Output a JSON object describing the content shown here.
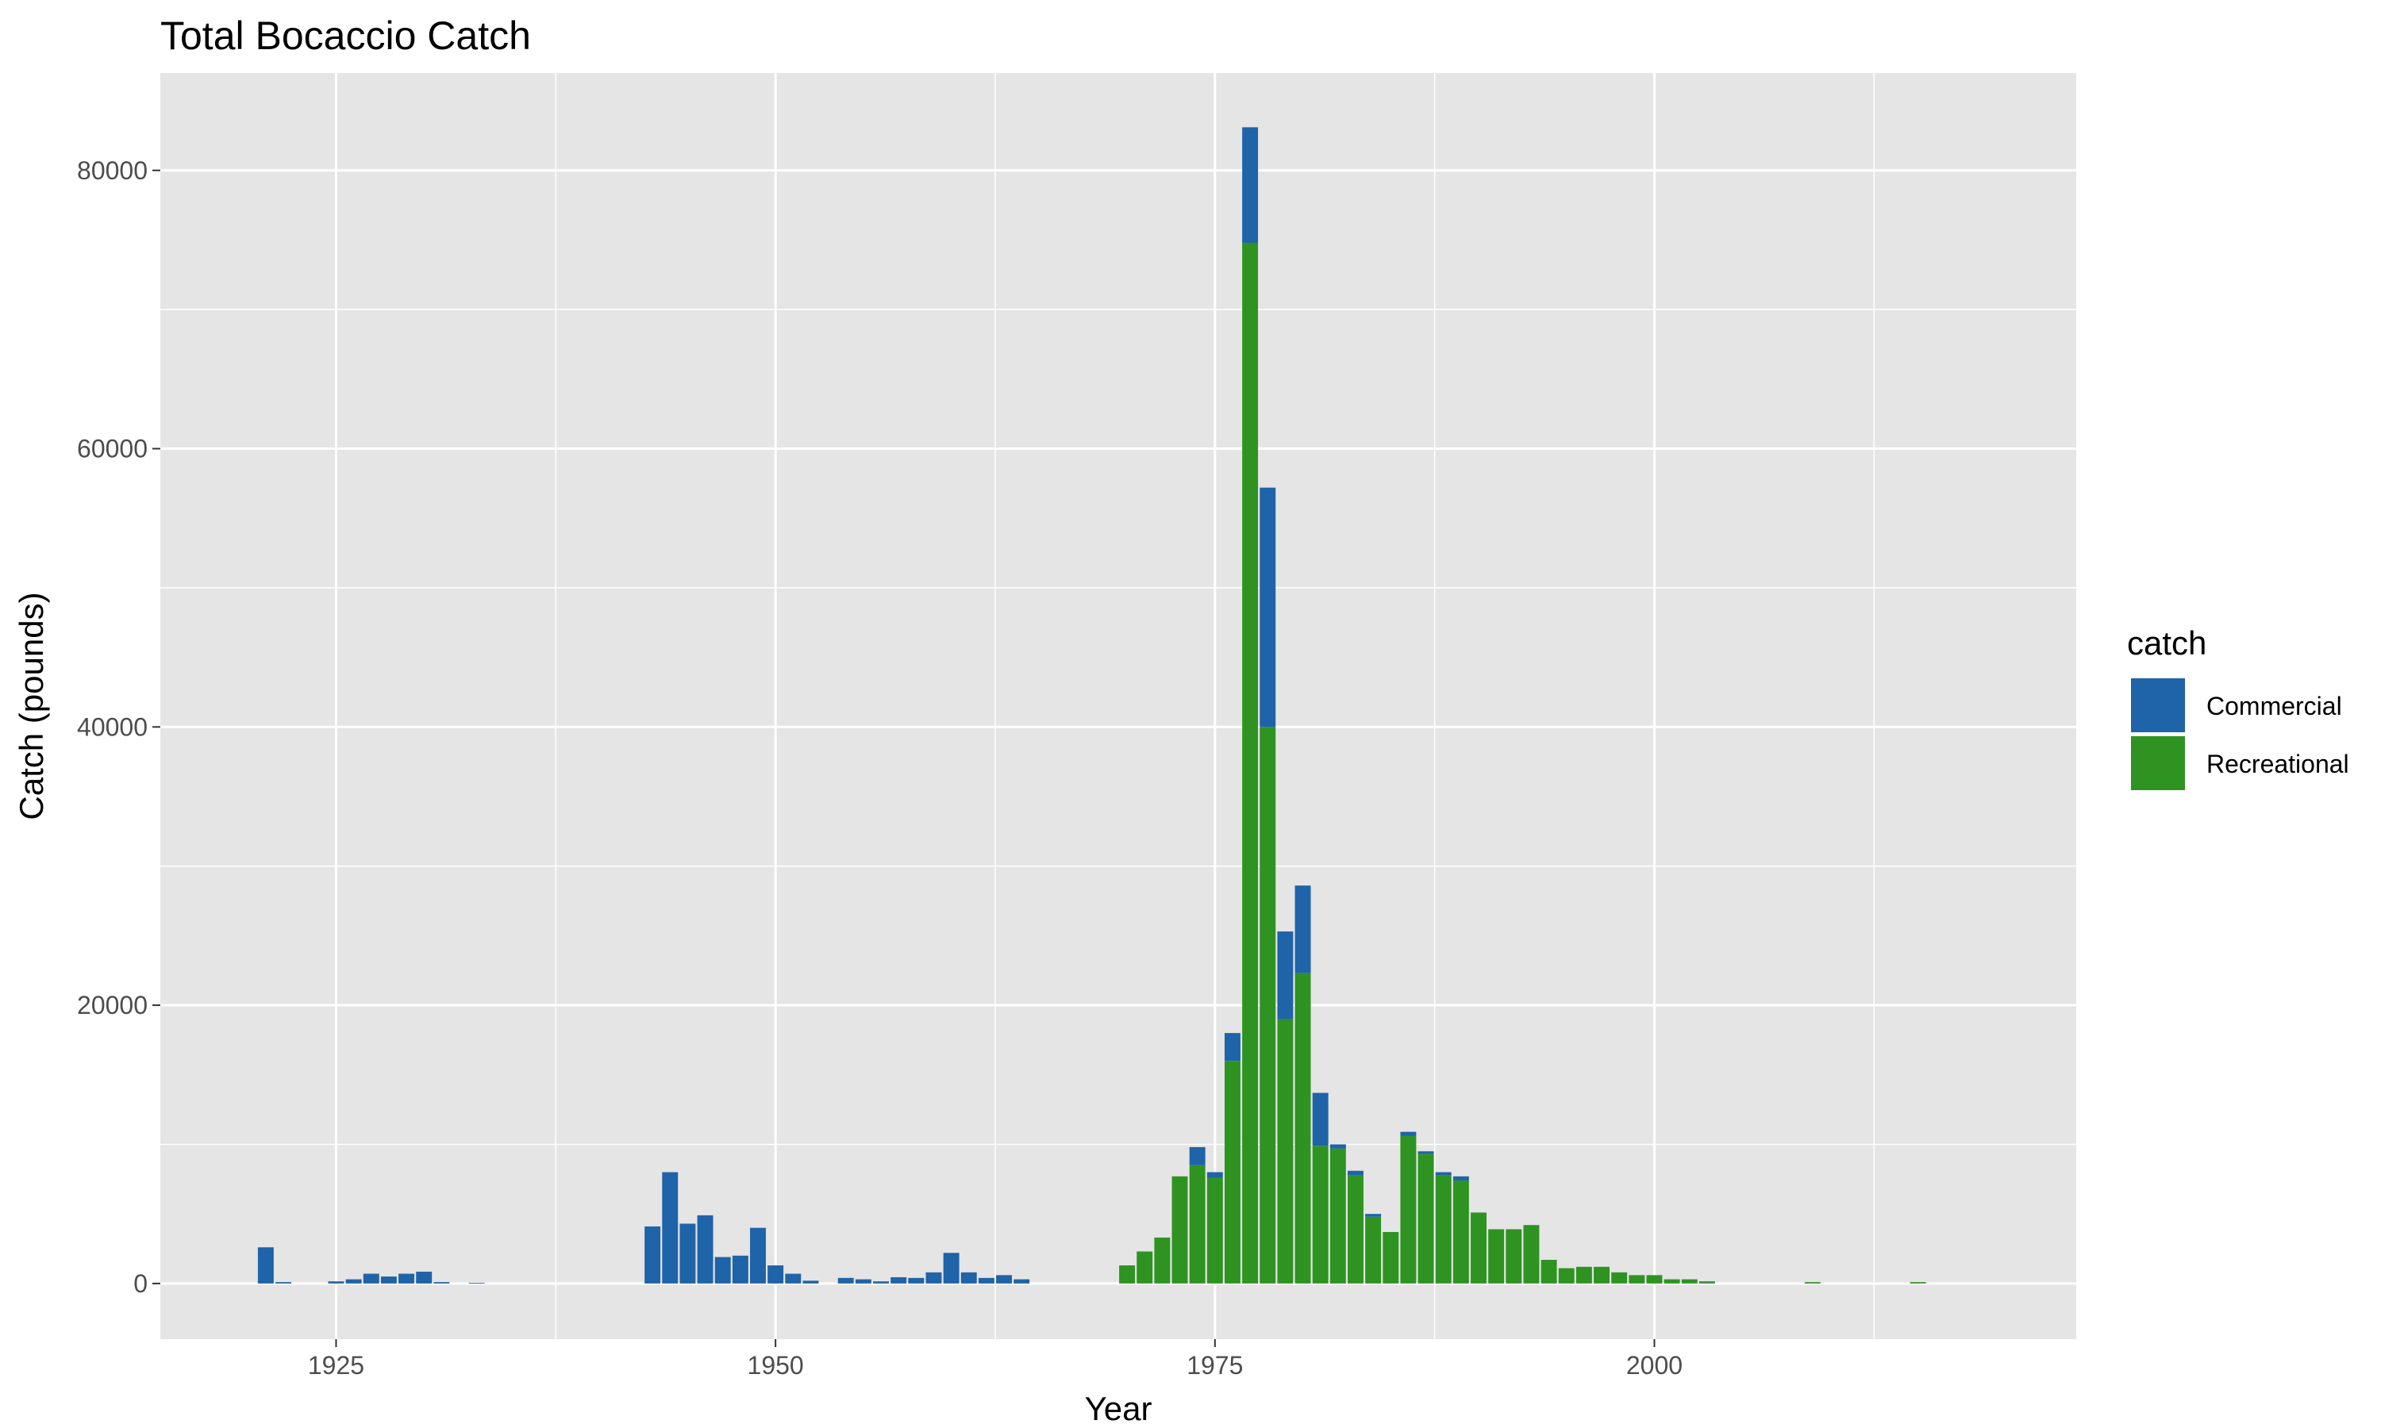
{
  "chart_data": {
    "type": "bar",
    "stacked": true,
    "title": "Total Bocaccio Catch",
    "xlabel": "Year",
    "ylabel": "Catch (pounds)",
    "xlim": [
      1915,
      2024
    ],
    "ylim": [
      -4000,
      87000
    ],
    "x_ticks": [
      1925,
      1950,
      1975,
      2000
    ],
    "y_ticks": [
      0,
      20000,
      40000,
      60000,
      80000
    ],
    "grid": true,
    "legend": {
      "title": "catch",
      "position": "right"
    },
    "colors": {
      "panel": "#e5e5e5",
      "grid": "#ffffff",
      "Commercial": "#1f63a8",
      "Recreational": "#2e9321"
    },
    "series": [
      {
        "name": "Commercial",
        "points": [
          [
            1921,
            2600
          ],
          [
            1922,
            100
          ],
          [
            1925,
            150
          ],
          [
            1926,
            300
          ],
          [
            1927,
            700
          ],
          [
            1928,
            500
          ],
          [
            1929,
            700
          ],
          [
            1930,
            850
          ],
          [
            1931,
            100
          ],
          [
            1933,
            50
          ],
          [
            1943,
            4100
          ],
          [
            1944,
            8000
          ],
          [
            1945,
            4300
          ],
          [
            1946,
            4900
          ],
          [
            1947,
            1900
          ],
          [
            1948,
            2000
          ],
          [
            1949,
            4000
          ],
          [
            1950,
            1300
          ],
          [
            1951,
            700
          ],
          [
            1952,
            200
          ],
          [
            1954,
            400
          ],
          [
            1955,
            300
          ],
          [
            1956,
            150
          ],
          [
            1957,
            450
          ],
          [
            1958,
            400
          ],
          [
            1959,
            800
          ],
          [
            1960,
            2200
          ],
          [
            1961,
            800
          ],
          [
            1962,
            400
          ],
          [
            1963,
            600
          ],
          [
            1964,
            300
          ],
          [
            1974,
            1300
          ],
          [
            1975,
            400
          ],
          [
            1976,
            2000
          ],
          [
            1977,
            8300
          ],
          [
            1978,
            17200
          ],
          [
            1979,
            6300
          ],
          [
            1980,
            6300
          ],
          [
            1981,
            3800
          ],
          [
            1982,
            300
          ],
          [
            1983,
            300
          ],
          [
            1984,
            200
          ],
          [
            1986,
            300
          ],
          [
            1987,
            200
          ],
          [
            1988,
            200
          ],
          [
            1989,
            300
          ],
          [
            2003,
            50
          ]
        ]
      },
      {
        "name": "Recreational",
        "points": [
          [
            1970,
            1300
          ],
          [
            1971,
            2300
          ],
          [
            1972,
            3300
          ],
          [
            1973,
            7700
          ],
          [
            1974,
            8500
          ],
          [
            1975,
            7600
          ],
          [
            1976,
            16000
          ],
          [
            1977,
            74800
          ],
          [
            1978,
            40000
          ],
          [
            1979,
            19000
          ],
          [
            1980,
            22300
          ],
          [
            1981,
            9900
          ],
          [
            1982,
            9700
          ],
          [
            1983,
            7800
          ],
          [
            1984,
            4800
          ],
          [
            1985,
            3700
          ],
          [
            1986,
            10600
          ],
          [
            1987,
            9300
          ],
          [
            1988,
            7800
          ],
          [
            1989,
            7400
          ],
          [
            1990,
            5100
          ],
          [
            1991,
            3900
          ],
          [
            1992,
            3900
          ],
          [
            1993,
            4200
          ],
          [
            1994,
            1700
          ],
          [
            1995,
            1100
          ],
          [
            1996,
            1200
          ],
          [
            1997,
            1200
          ],
          [
            1998,
            800
          ],
          [
            1999,
            600
          ],
          [
            2000,
            600
          ],
          [
            2001,
            300
          ],
          [
            2002,
            300
          ],
          [
            2003,
            100
          ],
          [
            2009,
            100
          ],
          [
            2015,
            100
          ]
        ]
      }
    ]
  }
}
